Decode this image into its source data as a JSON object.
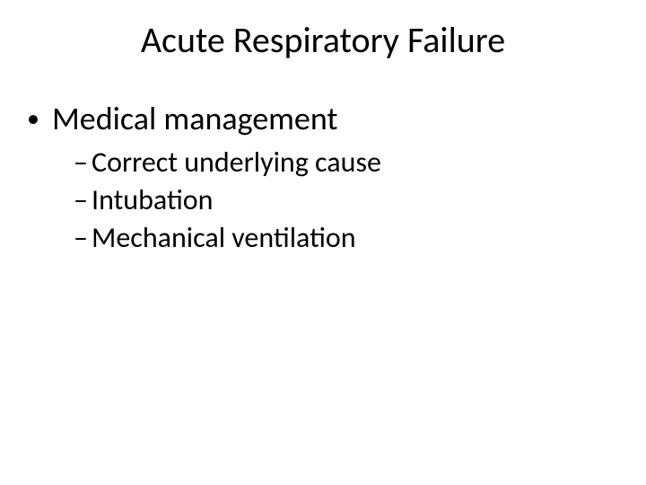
{
  "slide": {
    "title": "Acute Respiratory Failure",
    "title_fontsize": 40,
    "background_color": "#ffffff",
    "text_color": "#000000",
    "level1": {
      "bullet_char": "•",
      "fontsize": 36,
      "items": [
        {
          "text": "Medical management"
        }
      ]
    },
    "level2": {
      "bullet_char": "–",
      "fontsize": 32,
      "items": [
        {
          "text": "Correct underlying cause"
        },
        {
          "text": "Intubation"
        },
        {
          "text": "Mechanical ventilation"
        }
      ]
    }
  }
}
